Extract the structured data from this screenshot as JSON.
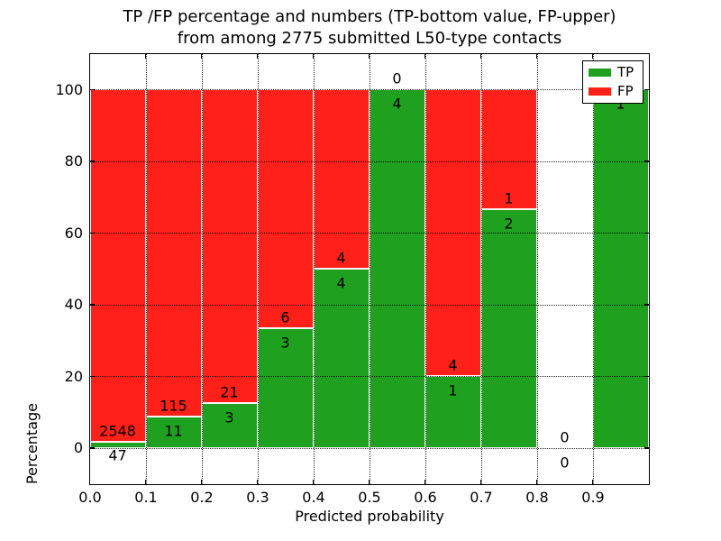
{
  "figure": {
    "background_color": "#ffffff",
    "axis_color": "#000000"
  },
  "chart_data": {
    "type": "bar",
    "stacked": true,
    "title_line1": "TP /FP percentage and numbers (TP-bottom value, FP-upper)",
    "title_line2": "from among 2775 submitted L50-type contacts",
    "xlabel": "Predicted probability",
    "ylabel": "Percentage",
    "xlim": [
      0.0,
      1.0
    ],
    "ylim": [
      -10,
      110
    ],
    "x_tick_labels": [
      "0.0",
      "0.1",
      "0.2",
      "0.3",
      "0.4",
      "0.5",
      "0.6",
      "0.7",
      "0.8",
      "0.9"
    ],
    "y_tick_labels": [
      "0",
      "20",
      "40",
      "60",
      "80",
      "100"
    ],
    "y_tick_values": [
      0,
      20,
      40,
      60,
      80,
      100
    ],
    "grid": "dotted",
    "bar_width": 0.1,
    "total_contacts": 2775,
    "legend": {
      "position": "upper right",
      "items": [
        {
          "label": "TP",
          "color": "#1fa01f"
        },
        {
          "label": "FP",
          "color": "#ff2019"
        }
      ]
    },
    "colors": {
      "tp": "#1fa01f",
      "fp": "#ff2019"
    },
    "bins": [
      {
        "x_range": [
          0.0,
          0.1
        ],
        "tp": 47,
        "fp": 2548,
        "tp_pct": 1.81
      },
      {
        "x_range": [
          0.1,
          0.2
        ],
        "tp": 11,
        "fp": 115,
        "tp_pct": 8.73
      },
      {
        "x_range": [
          0.2,
          0.3
        ],
        "tp": 3,
        "fp": 21,
        "tp_pct": 12.5
      },
      {
        "x_range": [
          0.3,
          0.4
        ],
        "tp": 3,
        "fp": 6,
        "tp_pct": 33.33
      },
      {
        "x_range": [
          0.4,
          0.5
        ],
        "tp": 4,
        "fp": 4,
        "tp_pct": 50
      },
      {
        "x_range": [
          0.5,
          0.6
        ],
        "tp": 4,
        "fp": 0,
        "tp_pct": 100
      },
      {
        "x_range": [
          0.6,
          0.7
        ],
        "tp": 1,
        "fp": 4,
        "tp_pct": 20
      },
      {
        "x_range": [
          0.7,
          0.8
        ],
        "tp": 2,
        "fp": 1,
        "tp_pct": 66.67
      },
      {
        "x_range": [
          0.8,
          0.9
        ],
        "tp": 0,
        "fp": 0,
        "tp_pct": 0
      },
      {
        "x_range": [
          0.9,
          1.0
        ],
        "tp": 1,
        "fp": 0,
        "tp_pct": 100,
        "fp_label_visible": false
      }
    ]
  }
}
